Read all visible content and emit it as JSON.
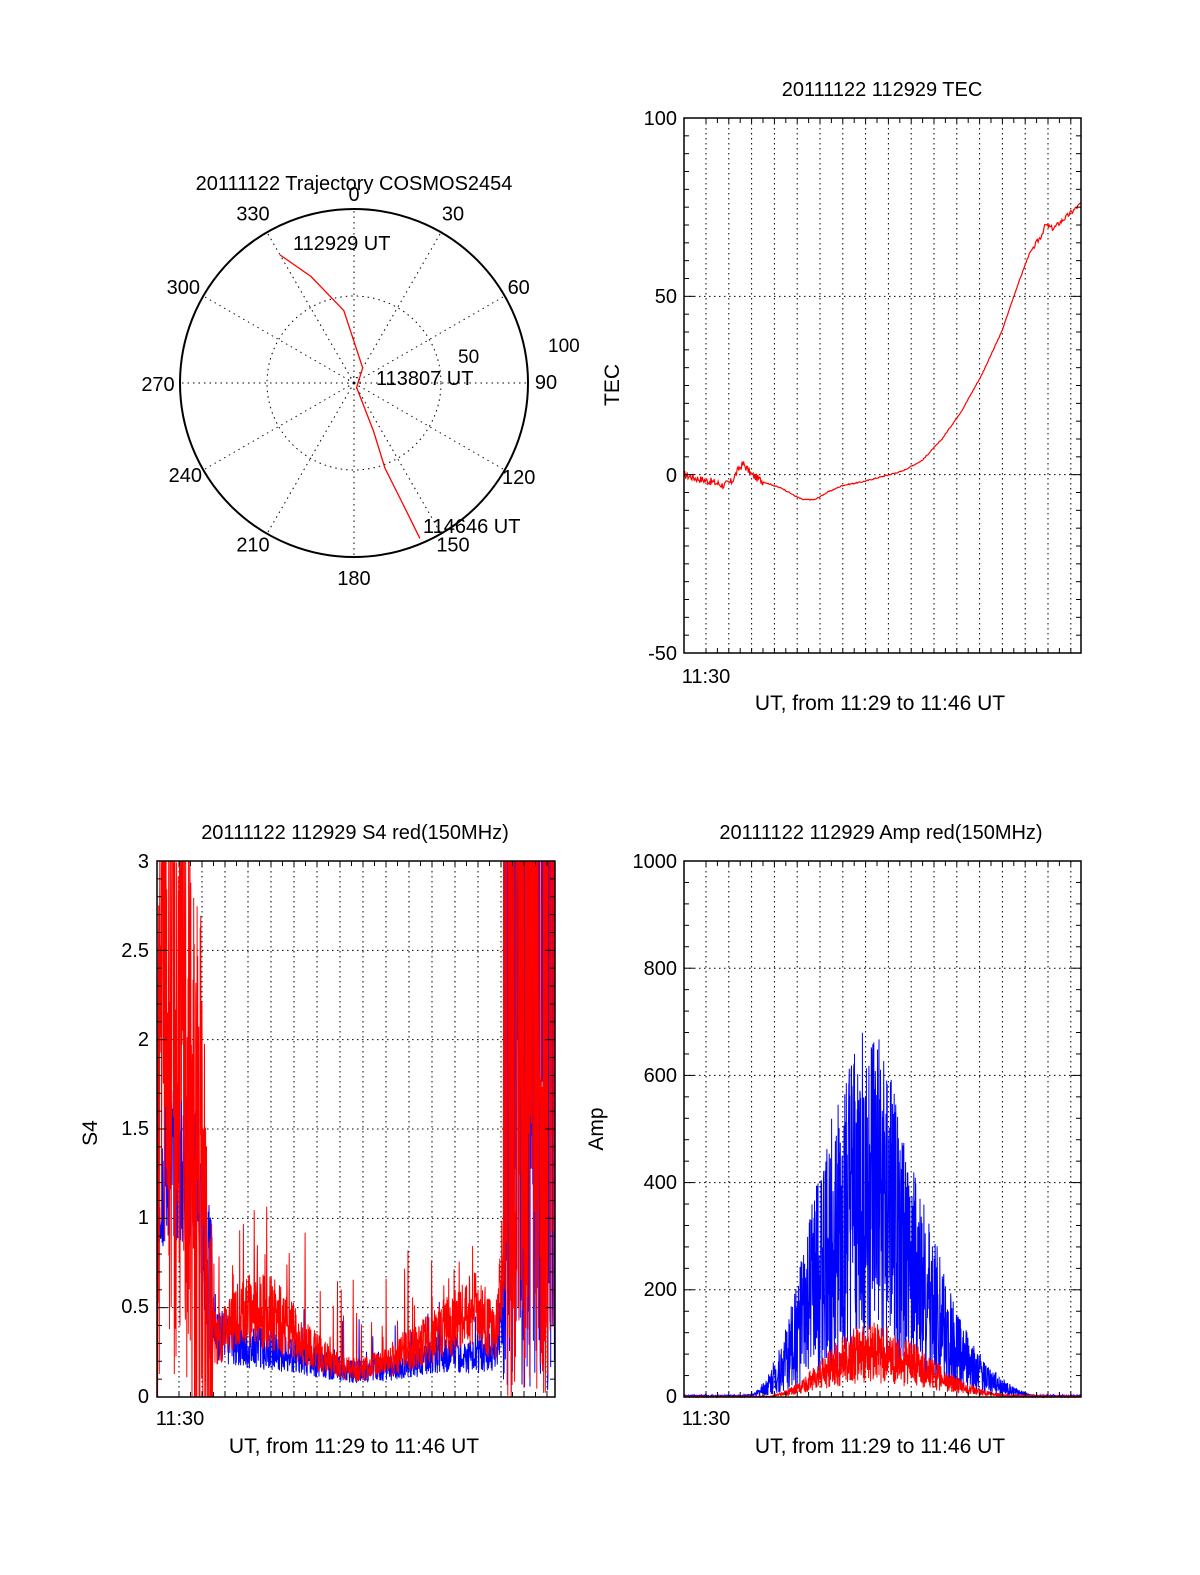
{
  "colors": {
    "red": "#ff0000",
    "blue": "#0000ff",
    "axis": "#000000",
    "grid": "#000000",
    "background": "#ffffff"
  },
  "chart_data": [
    {
      "id": "polar",
      "type": "polar",
      "title": "20111122 Trajectory COSMOS2454",
      "azimuth_labels": [
        "0",
        "30",
        "60",
        "90",
        "120",
        "150",
        "180",
        "210",
        "240",
        "270",
        "300",
        "330"
      ],
      "radial_labels": [
        "50",
        "100"
      ],
      "annotations": [
        "112929 UT",
        "113807 UT",
        "114646 UT"
      ],
      "grid": "dotted",
      "series": [
        {
          "color": "#ff0000",
          "points": [
            [
              330,
              85
            ],
            [
              338,
              66
            ],
            [
              352,
              42
            ],
            [
              30,
              10
            ],
            [
              150,
              3
            ],
            [
              158,
              30
            ],
            [
              160,
              52
            ],
            [
              158,
              75
            ],
            [
              157,
              97
            ]
          ]
        }
      ]
    },
    {
      "id": "tec",
      "type": "line",
      "title": "20111122 112929 TEC",
      "xlabel": "UT, from 11:29 to 11:46 UT",
      "ylabel": "TEC",
      "x_tick_label": "11:30",
      "y_ticks": [
        "100",
        "50",
        "0",
        "-50"
      ],
      "xlim": [
        0,
        1
      ],
      "ylim": [
        -50,
        100
      ],
      "grid": "dotted",
      "series": [
        {
          "color": "#ff0000",
          "points": [
            [
              0.0,
              0
            ],
            [
              0.03,
              -1
            ],
            [
              0.07,
              -2
            ],
            [
              0.1,
              -3
            ],
            [
              0.12,
              -2
            ],
            [
              0.14,
              2
            ],
            [
              0.15,
              3
            ],
            [
              0.17,
              0
            ],
            [
              0.2,
              -2
            ],
            [
              0.25,
              -4
            ],
            [
              0.28,
              -6
            ],
            [
              0.3,
              -7
            ],
            [
              0.33,
              -7
            ],
            [
              0.36,
              -5
            ],
            [
              0.4,
              -3
            ],
            [
              0.45,
              -2
            ],
            [
              0.5,
              -0.5
            ],
            [
              0.55,
              1
            ],
            [
              0.6,
              4
            ],
            [
              0.65,
              10
            ],
            [
              0.7,
              18
            ],
            [
              0.75,
              28
            ],
            [
              0.8,
              40
            ],
            [
              0.84,
              53
            ],
            [
              0.87,
              62
            ],
            [
              0.9,
              67
            ],
            [
              0.91,
              70
            ],
            [
              0.93,
              69
            ],
            [
              0.96,
              72
            ],
            [
              0.98,
              74
            ],
            [
              1.0,
              76
            ]
          ]
        }
      ]
    },
    {
      "id": "s4",
      "type": "line",
      "title": "20111122 112929 S4 red(150MHz)",
      "xlabel": "UT, from 11:29 to 11:46 UT",
      "ylabel": "S4",
      "x_tick_label": "11:30",
      "y_ticks": [
        "3",
        "2.5",
        "2",
        "1.5",
        "1",
        "0.5",
        "0"
      ],
      "xlim": [
        0,
        1
      ],
      "ylim": [
        0,
        3
      ],
      "grid": "dotted",
      "series": [
        {
          "color": "#0000ff",
          "points": [
            [
              0.0,
              1.2
            ],
            [
              0.03,
              1.35
            ],
            [
              0.06,
              1.25
            ],
            [
              0.09,
              1.3
            ],
            [
              0.11,
              1.1
            ],
            [
              0.13,
              0.65
            ],
            [
              0.15,
              0.35
            ],
            [
              0.2,
              0.3
            ],
            [
              0.25,
              0.28
            ],
            [
              0.3,
              0.26
            ],
            [
              0.35,
              0.22
            ],
            [
              0.4,
              0.2
            ],
            [
              0.45,
              0.16
            ],
            [
              0.5,
              0.14
            ],
            [
              0.55,
              0.15
            ],
            [
              0.6,
              0.17
            ],
            [
              0.65,
              0.2
            ],
            [
              0.7,
              0.24
            ],
            [
              0.75,
              0.25
            ],
            [
              0.8,
              0.22
            ],
            [
              0.85,
              0.26
            ],
            [
              0.87,
              0.5
            ],
            [
              0.88,
              1.2
            ],
            [
              0.9,
              2.5
            ]
          ]
        },
        {
          "color": "#ff0000",
          "points": [
            [
              0.0,
              1.5
            ],
            [
              0.02,
              2.5
            ],
            [
              0.04,
              1.8
            ],
            [
              0.06,
              2.2
            ],
            [
              0.09,
              1.4
            ],
            [
              0.11,
              0.9
            ],
            [
              0.13,
              0.5
            ],
            [
              0.15,
              0.3
            ],
            [
              0.2,
              0.45
            ],
            [
              0.25,
              0.5
            ],
            [
              0.3,
              0.45
            ],
            [
              0.35,
              0.35
            ],
            [
              0.4,
              0.25
            ],
            [
              0.45,
              0.18
            ],
            [
              0.5,
              0.15
            ],
            [
              0.55,
              0.18
            ],
            [
              0.6,
              0.22
            ],
            [
              0.65,
              0.28
            ],
            [
              0.7,
              0.35
            ],
            [
              0.75,
              0.42
            ],
            [
              0.8,
              0.5
            ],
            [
              0.85,
              0.35
            ],
            [
              0.88,
              1.0
            ],
            [
              0.92,
              2.0
            ]
          ]
        }
      ]
    },
    {
      "id": "amp",
      "type": "line",
      "title": "20111122 112929 Amp red(150MHz)",
      "xlabel": "UT, from 11:29 to 11:46 UT",
      "ylabel": "Amp",
      "x_tick_label": "11:30",
      "y_ticks": [
        "1000",
        "800",
        "600",
        "400",
        "200",
        "0"
      ],
      "xlim": [
        0,
        1
      ],
      "ylim": [
        0,
        1000
      ],
      "grid": "dotted",
      "series": [
        {
          "color": "#0000ff",
          "points": [
            [
              0.0,
              2
            ],
            [
              0.15,
              2
            ],
            [
              0.18,
              5
            ],
            [
              0.2,
              15
            ],
            [
              0.22,
              30
            ],
            [
              0.25,
              60
            ],
            [
              0.28,
              110
            ],
            [
              0.31,
              170
            ],
            [
              0.34,
              230
            ],
            [
              0.37,
              280
            ],
            [
              0.4,
              320
            ],
            [
              0.43,
              360
            ],
            [
              0.46,
              390
            ],
            [
              0.48,
              380
            ],
            [
              0.5,
              360
            ],
            [
              0.53,
              310
            ],
            [
              0.56,
              260
            ],
            [
              0.6,
              200
            ],
            [
              0.64,
              150
            ],
            [
              0.68,
              100
            ],
            [
              0.72,
              60
            ],
            [
              0.76,
              35
            ],
            [
              0.8,
              20
            ],
            [
              0.84,
              8
            ],
            [
              0.88,
              2
            ],
            [
              1.0,
              2
            ]
          ]
        },
        {
          "color": "#ff0000",
          "points": [
            [
              0.0,
              1
            ],
            [
              0.22,
              1
            ],
            [
              0.26,
              8
            ],
            [
              0.3,
              20
            ],
            [
              0.34,
              40
            ],
            [
              0.38,
              60
            ],
            [
              0.42,
              75
            ],
            [
              0.46,
              85
            ],
            [
              0.5,
              80
            ],
            [
              0.54,
              70
            ],
            [
              0.58,
              60
            ],
            [
              0.62,
              45
            ],
            [
              0.66,
              30
            ],
            [
              0.7,
              18
            ],
            [
              0.74,
              10
            ],
            [
              0.78,
              5
            ],
            [
              0.82,
              2
            ],
            [
              1.0,
              1
            ]
          ]
        }
      ]
    }
  ]
}
